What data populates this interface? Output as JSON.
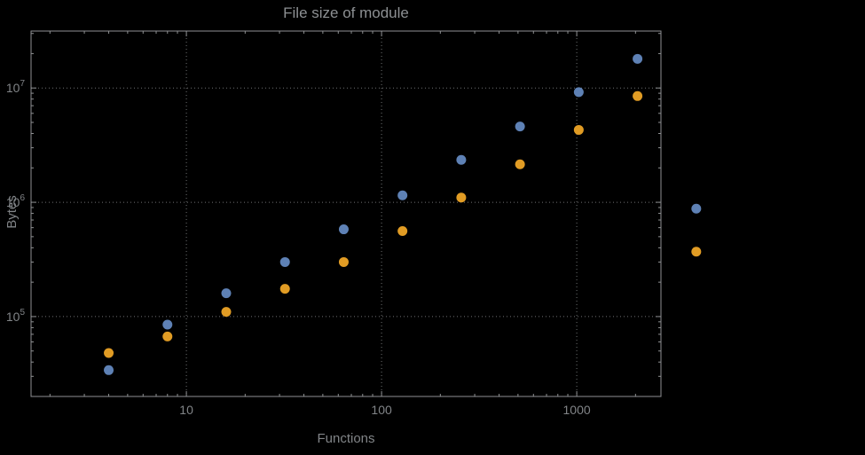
{
  "chart_data": {
    "type": "scatter",
    "title": "File size of module",
    "xlabel": "Functions",
    "ylabel": "Bytes",
    "background_color": "#000000",
    "frame_color": "#8f9193",
    "grid_color": "#6f7173",
    "text_color": "#818487",
    "title_color": "#8d9093",
    "grid_style": "dotted-major",
    "legend": null,
    "x_axis": {
      "scale": "log",
      "min": 1.6,
      "max": 2700,
      "ticks": [
        {
          "value": 10,
          "label": "10"
        },
        {
          "value": 100,
          "label": "100"
        },
        {
          "value": 1000,
          "label": "1000"
        }
      ]
    },
    "y_axis": {
      "scale": "log",
      "min": 20000,
      "max": 31500000,
      "ticks": [
        {
          "value": 100000,
          "base": "10",
          "exp": "5"
        },
        {
          "value": 1000000,
          "base": "10",
          "exp": "6"
        },
        {
          "value": 10000000,
          "base": "10",
          "exp": "7"
        }
      ]
    },
    "series": [
      {
        "name": "series-blue",
        "color": "#5E81B5",
        "points": [
          [
            4,
            34000
          ],
          [
            8,
            85000
          ],
          [
            16,
            160000
          ],
          [
            32,
            300000
          ],
          [
            64,
            580000
          ],
          [
            128,
            1150000
          ],
          [
            256,
            2350000
          ],
          [
            512,
            4600000
          ],
          [
            1024,
            9200000
          ],
          [
            2048,
            18000000
          ],
          [
            4096,
            880000
          ]
        ]
      },
      {
        "name": "series-orange",
        "color": "#E19C24",
        "points": [
          [
            4,
            48000
          ],
          [
            8,
            67000
          ],
          [
            16,
            110000
          ],
          [
            32,
            175000
          ],
          [
            64,
            300000
          ],
          [
            128,
            560000
          ],
          [
            256,
            1100000
          ],
          [
            512,
            2150000
          ],
          [
            1024,
            4300000
          ],
          [
            2048,
            8500000
          ],
          [
            4096,
            370000
          ]
        ]
      }
    ]
  }
}
